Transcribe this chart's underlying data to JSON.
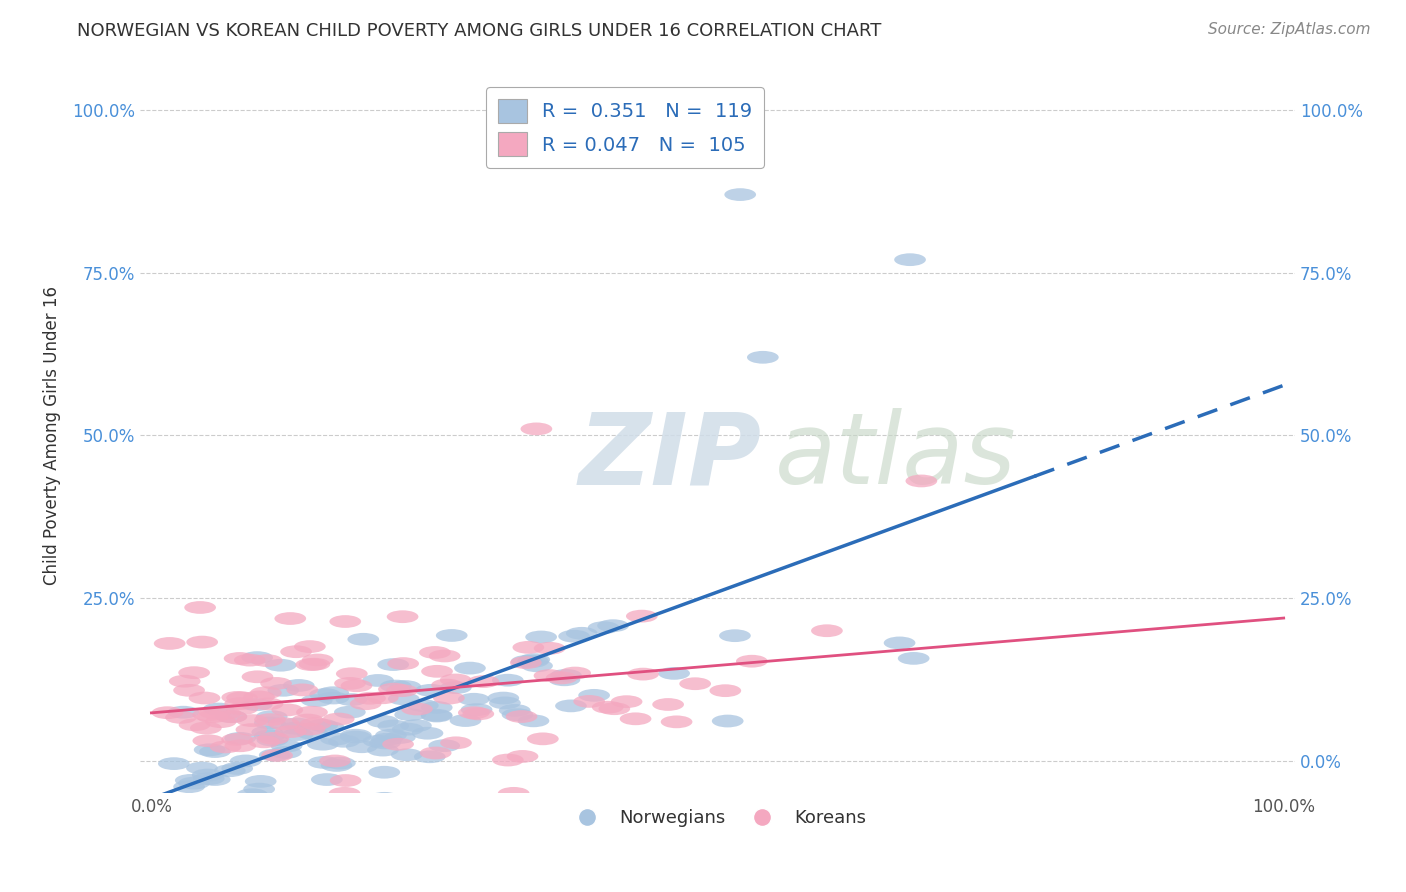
{
  "title": "NORWEGIAN VS KOREAN CHILD POVERTY AMONG GIRLS UNDER 16 CORRELATION CHART",
  "source": "Source: ZipAtlas.com",
  "ylabel": "Child Poverty Among Girls Under 16",
  "xtick_labels": [
    "0.0%",
    "100.0%"
  ],
  "ytick_labels_left": [
    "",
    "25.0%",
    "50.0%",
    "75.0%",
    "100.0%"
  ],
  "ytick_labels_right": [
    "0.0%",
    "25.0%",
    "50.0%",
    "75.0%",
    "100.0%"
  ],
  "ytick_positions": [
    0.0,
    0.25,
    0.5,
    0.75,
    1.0
  ],
  "background_color": "#ffffff",
  "grid_color": "#cccccc",
  "norwegian_color": "#a8c4e0",
  "korean_color": "#f4a8c0",
  "legend_R_norwegian": "0.351",
  "legend_N_norwegian": "119",
  "legend_R_korean": "0.047",
  "legend_N_korean": "105",
  "trend_norwegian_color": "#2b6cb8",
  "trend_korean_color": "#e05080",
  "watermark_zip": "ZIP",
  "watermark_atlas": "atlas",
  "norwegians_seed": 42,
  "koreans_seed": 99
}
